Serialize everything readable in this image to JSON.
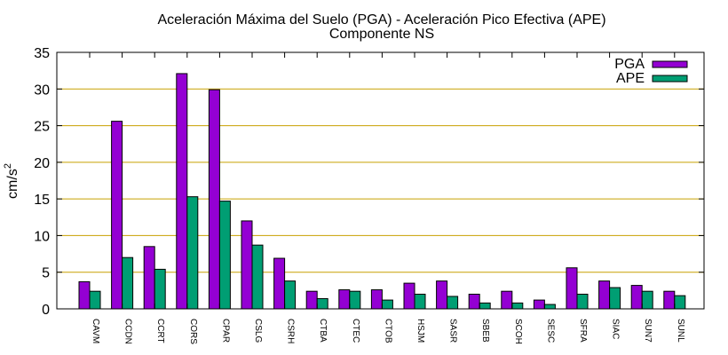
{
  "chart_data": {
    "type": "bar",
    "title": "Aceleración Máxima del Suelo (PGA) -  Aceleración Pico Efectiva (APE)",
    "subtitle": "Componente NS",
    "ylabel_base": "cm/s",
    "ylabel_sup": "2",
    "xlabel": "",
    "ylim": [
      0,
      35
    ],
    "yticks": [
      "0",
      "5",
      "10",
      "15",
      "20",
      "25",
      "30",
      "35"
    ],
    "grid": true,
    "legend_position": "top-right",
    "categories": [
      "CAVM",
      "CCDN",
      "CCRT",
      "CORS",
      "CPAR",
      "CSLG",
      "CSRH",
      "CTBA",
      "CTEC",
      "CTOB",
      "HSJM",
      "SASR",
      "SBEB",
      "SCOH",
      "SESC",
      "SFRA",
      "SIAC",
      "SUN7",
      "SUNL"
    ],
    "series": [
      {
        "name": "PGA",
        "color": "#9400d3",
        "values": [
          3.7,
          25.6,
          8.5,
          32.1,
          29.9,
          12.0,
          6.9,
          2.4,
          2.6,
          2.6,
          3.5,
          3.8,
          2.0,
          2.4,
          1.2,
          5.6,
          3.8,
          3.2,
          2.4
        ]
      },
      {
        "name": "APE",
        "color": "#009e73",
        "values": [
          2.4,
          7.0,
          5.4,
          15.3,
          14.7,
          8.7,
          3.8,
          1.4,
          2.4,
          1.2,
          2.0,
          1.7,
          0.8,
          0.8,
          0.6,
          2.0,
          2.9,
          2.4,
          1.8
        ]
      }
    ]
  }
}
